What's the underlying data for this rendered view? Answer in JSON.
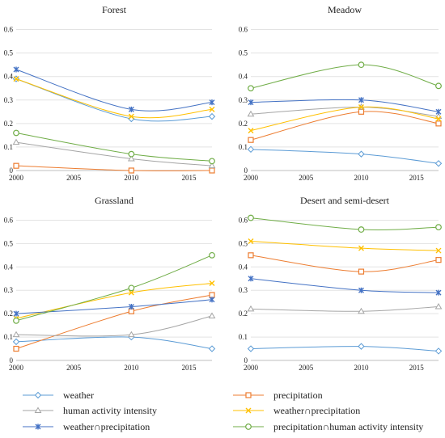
{
  "chart_data": {
    "type": "line",
    "x": [
      2000,
      2010,
      2017
    ],
    "xlim": [
      2000,
      2017
    ],
    "xticks": [
      2000,
      2005,
      2010,
      2015
    ],
    "ylim": [
      0,
      0.65
    ],
    "yticks": [
      "0",
      "0.1",
      "0.2",
      "0.3",
      "0.4",
      "0.5",
      "0.6"
    ],
    "grid": "horizontal",
    "legend_position": "bottom",
    "legend": [
      {
        "name": "weather",
        "color": "#5b9bd5",
        "marker": "diamond"
      },
      {
        "name": "precipitation",
        "color": "#ed7d31",
        "marker": "square"
      },
      {
        "name": "human activity intensity",
        "color": "#a5a5a5",
        "marker": "triangle"
      },
      {
        "name": "weather∩precipitation",
        "color": "#ffc000",
        "marker": "x"
      },
      {
        "name": "weather∩precipitation",
        "color": "#4472c4",
        "marker": "star"
      },
      {
        "name": "precipitation∩human activity intensity",
        "color": "#70ad47",
        "marker": "circle"
      }
    ],
    "panels": [
      {
        "title": "Forest",
        "series": [
          {
            "name": "weather",
            "values": [
              0.39,
              0.22,
              0.23
            ]
          },
          {
            "name": "precipitation",
            "values": [
              0.02,
              0.0,
              0.0
            ]
          },
          {
            "name": "human activity intensity",
            "values": [
              0.12,
              0.05,
              0.02
            ]
          },
          {
            "name": "weather∩precipitation",
            "values": [
              0.39,
              0.23,
              0.26
            ]
          },
          {
            "name": "weather∩precipitation",
            "values": [
              0.43,
              0.26,
              0.29
            ]
          },
          {
            "name": "precipitation∩human activity intensity",
            "values": [
              0.16,
              0.07,
              0.04
            ]
          }
        ]
      },
      {
        "title": "Meadow",
        "series": [
          {
            "name": "weather",
            "values": [
              0.09,
              0.07,
              0.03
            ]
          },
          {
            "name": "precipitation",
            "values": [
              0.13,
              0.25,
              0.2
            ]
          },
          {
            "name": "human activity intensity",
            "values": [
              0.24,
              0.27,
              0.23
            ]
          },
          {
            "name": "weather∩precipitation",
            "values": [
              0.17,
              0.27,
              0.22
            ]
          },
          {
            "name": "weather∩precipitation",
            "values": [
              0.29,
              0.3,
              0.25
            ]
          },
          {
            "name": "precipitation∩human activity intensity",
            "values": [
              0.35,
              0.45,
              0.36
            ]
          }
        ]
      },
      {
        "title": "Grassland",
        "series": [
          {
            "name": "weather",
            "values": [
              0.08,
              0.1,
              0.05
            ]
          },
          {
            "name": "precipitation",
            "values": [
              0.05,
              0.21,
              0.28
            ]
          },
          {
            "name": "human activity intensity",
            "values": [
              0.11,
              0.11,
              0.19
            ]
          },
          {
            "name": "weather∩precipitation",
            "values": [
              0.18,
              0.29,
              0.33
            ]
          },
          {
            "name": "weather∩precipitation",
            "values": [
              0.2,
              0.23,
              0.26
            ]
          },
          {
            "name": "precipitation∩human activity intensity",
            "values": [
              0.17,
              0.31,
              0.45
            ]
          }
        ]
      },
      {
        "title": "Desert and semi-desert",
        "series": [
          {
            "name": "weather",
            "values": [
              0.05,
              0.06,
              0.04
            ]
          },
          {
            "name": "precipitation",
            "values": [
              0.45,
              0.38,
              0.43
            ]
          },
          {
            "name": "human activity intensity",
            "values": [
              0.22,
              0.21,
              0.23
            ]
          },
          {
            "name": "weather∩precipitation",
            "values": [
              0.51,
              0.48,
              0.47
            ]
          },
          {
            "name": "weather∩precipitation",
            "values": [
              0.35,
              0.3,
              0.29
            ]
          },
          {
            "name": "precipitation∩human activity intensity",
            "values": [
              0.61,
              0.56,
              0.57
            ]
          }
        ]
      }
    ]
  }
}
